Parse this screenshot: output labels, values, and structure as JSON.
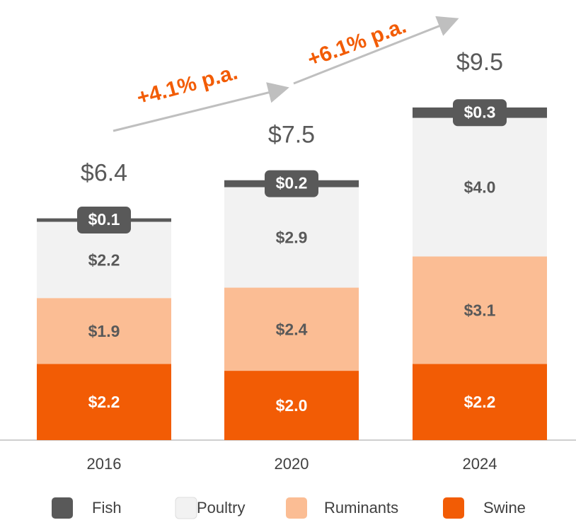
{
  "chart_data": {
    "type": "bar",
    "stacked": true,
    "categories": [
      "2016",
      "2020",
      "2024"
    ],
    "series": [
      {
        "name": "Fish",
        "color": "#595959",
        "values": [
          0.1,
          0.2,
          0.3
        ],
        "value_labels": [
          "$0.1",
          "$0.2",
          "$0.3"
        ]
      },
      {
        "name": "Poultry",
        "color": "#f2f2f2",
        "values": [
          2.2,
          2.9,
          4.0
        ],
        "value_labels": [
          "$2.2",
          "$2.9",
          "$4.0"
        ]
      },
      {
        "name": "Ruminants",
        "color": "#fbbd94",
        "values": [
          1.9,
          2.4,
          3.1
        ],
        "value_labels": [
          "$1.9",
          "$2.4",
          "$3.1"
        ]
      },
      {
        "name": "Swine",
        "color": "#f25c05",
        "values": [
          2.2,
          2.0,
          2.2
        ],
        "value_labels": [
          "$2.2",
          "$2.0",
          "$2.2"
        ]
      }
    ],
    "totals": [
      6.4,
      7.5,
      9.5
    ],
    "total_labels": [
      "$6.4",
      "$7.5",
      "$9.5"
    ],
    "annotations": [
      "+4.1% p.a.",
      "+6.1% p.a."
    ],
    "ylim": [
      0,
      12.6
    ],
    "legend": "bottom"
  }
}
